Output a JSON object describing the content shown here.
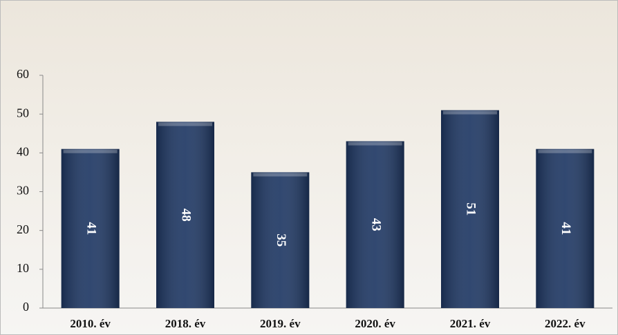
{
  "chart_data": {
    "type": "bar",
    "categories": [
      "2010. év",
      "2018. év",
      "2019. év",
      "2020. év",
      "2021. év",
      "2022. év"
    ],
    "values": [
      41,
      48,
      35,
      43,
      51,
      41
    ],
    "color": "#1f3864",
    "ylim": [
      0,
      60
    ],
    "yticks": [
      0,
      10,
      20,
      30,
      40,
      50,
      60
    ]
  }
}
